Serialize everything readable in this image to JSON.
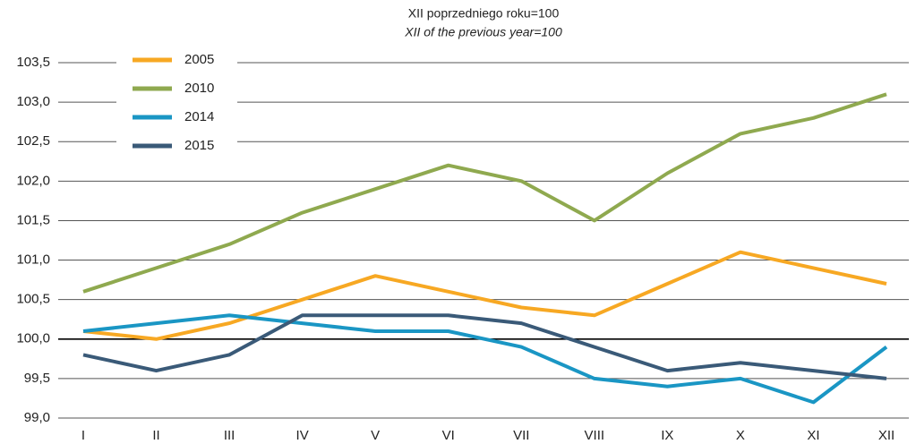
{
  "chart_data": {
    "type": "line",
    "title": "XII poprzedniego roku=100",
    "subtitle": "XII of the previous year=100",
    "categories": [
      "I",
      "II",
      "III",
      "IV",
      "V",
      "VI",
      "VII",
      "VIII",
      "IX",
      "X",
      "XI",
      "XII"
    ],
    "series": [
      {
        "name": "2005",
        "color": "#f7a823",
        "values": [
          100.1,
          100.0,
          100.2,
          100.5,
          100.8,
          100.6,
          100.4,
          100.3,
          100.7,
          101.1,
          100.9,
          100.7
        ]
      },
      {
        "name": "2010",
        "color": "#8fa94f",
        "values": [
          100.6,
          100.9,
          101.2,
          101.6,
          101.9,
          102.2,
          102.0,
          101.5,
          102.1,
          102.6,
          102.8,
          103.1
        ]
      },
      {
        "name": "2014",
        "color": "#1a96c4",
        "values": [
          100.1,
          100.2,
          100.3,
          100.2,
          100.1,
          100.1,
          99.9,
          99.5,
          99.4,
          99.5,
          99.2,
          99.9
        ]
      },
      {
        "name": "2015",
        "color": "#3a5a78",
        "values": [
          99.8,
          99.6,
          99.8,
          100.3,
          100.3,
          100.3,
          100.2,
          99.9,
          99.6,
          99.7,
          99.6,
          99.5
        ]
      }
    ],
    "ylim": [
      99.0,
      103.5
    ],
    "yticks": [
      {
        "value": 99.0,
        "label": "99,0"
      },
      {
        "value": 99.5,
        "label": "99,5"
      },
      {
        "value": 100.0,
        "label": "100,0"
      },
      {
        "value": 100.5,
        "label": "100,5"
      },
      {
        "value": 101.0,
        "label": "101,0"
      },
      {
        "value": 101.5,
        "label": "101,5"
      },
      {
        "value": 102.0,
        "label": "102,0"
      },
      {
        "value": 102.5,
        "label": "102,5"
      },
      {
        "value": 103.0,
        "label": "103,0"
      },
      {
        "value": 103.5,
        "label": "103,5"
      }
    ],
    "baseline": 100,
    "grid": true,
    "legend": "top-left"
  }
}
